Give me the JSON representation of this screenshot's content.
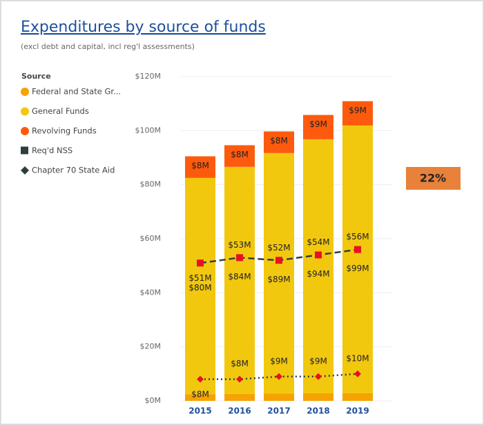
{
  "chart_data": {
    "type": "bar",
    "title": "Expenditures by source of funds",
    "subtitle": "(excl debt and capital,  incl reg'l assessments)",
    "legend_title": "Source",
    "categories": [
      "2015",
      "2016",
      "2017",
      "2018",
      "2019"
    ],
    "series": [
      {
        "name": "Federal and State Gr...",
        "color": "#f5a300",
        "values": [
          2.5,
          2.6,
          2.7,
          2.8,
          2.9
        ]
      },
      {
        "name": "General Funds",
        "color": "#f2c80f",
        "values": [
          80,
          84,
          89,
          94,
          99
        ],
        "value_labels": [
          "$80M",
          "$84M",
          "$89M",
          "$94M",
          "$99M"
        ]
      },
      {
        "name": "Revolving Funds",
        "color": "#fe5a0e",
        "values": [
          8,
          8,
          8,
          9,
          9
        ],
        "value_labels": [
          "$8M",
          "$8M",
          "$8M",
          "$9M",
          "$9M"
        ]
      },
      {
        "name": "Req'd NSS",
        "type": "line",
        "color": "#2d3e3f",
        "marker_color": "#e81123",
        "marker": "square",
        "dash": "dashed",
        "values": [
          51,
          53,
          52,
          54,
          56
        ],
        "value_labels": [
          "$51M",
          "$53M",
          "$52M",
          "$54M",
          "$56M"
        ]
      },
      {
        "name": "Chapter 70 State Aid",
        "type": "line",
        "color": "#2d3e3f",
        "marker_color": "#e81123",
        "marker": "diamond",
        "dash": "dotted",
        "values": [
          8,
          8,
          9,
          9,
          10
        ],
        "value_labels": [
          "$8M",
          "$8M",
          "$9M",
          "$9M",
          "$10M"
        ]
      }
    ],
    "ylim": [
      0,
      120
    ],
    "yticks": [
      {
        "value": 0,
        "label": "$0M"
      },
      {
        "value": 20,
        "label": "$20M"
      },
      {
        "value": 40,
        "label": "$40M"
      },
      {
        "value": 60,
        "label": "$60M"
      },
      {
        "value": 80,
        "label": "$80M"
      },
      {
        "value": 100,
        "label": "$100M"
      },
      {
        "value": 120,
        "label": "$120M"
      }
    ],
    "grid": true,
    "kpi": {
      "value": 22,
      "label": "22%",
      "color": "#e8813a"
    }
  }
}
